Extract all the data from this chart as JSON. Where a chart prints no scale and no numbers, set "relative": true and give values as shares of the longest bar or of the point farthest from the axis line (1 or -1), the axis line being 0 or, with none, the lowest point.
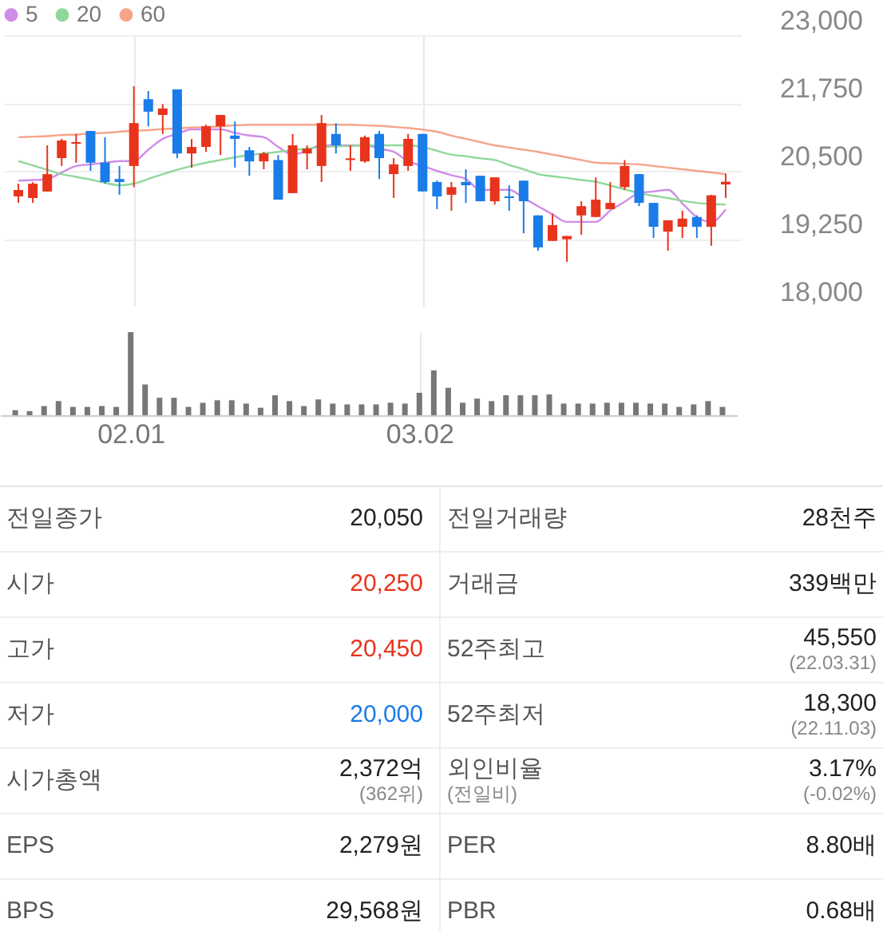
{
  "chart_data": [
    {
      "type": "candlestick",
      "categories": [
        null,
        null,
        null,
        null,
        null,
        null,
        null,
        null,
        "02.01",
        null,
        null,
        null,
        null,
        null,
        null,
        null,
        null,
        null,
        null,
        null,
        null,
        null,
        null,
        null,
        null,
        null,
        null,
        null,
        "03.02",
        null,
        null,
        null,
        null,
        null,
        null,
        null,
        null,
        null,
        null,
        null,
        null,
        null,
        null,
        null,
        null,
        null,
        null,
        null,
        null,
        null
      ],
      "ohlc": [
        [
          20030,
          20265,
          19912,
          20147
        ],
        [
          20000,
          20290,
          19910,
          20265
        ],
        [
          20120,
          20970,
          20120,
          20440
        ],
        [
          20735,
          21090,
          20590,
          21060
        ],
        [
          21000,
          21180,
          20650,
          21030
        ],
        [
          21235,
          21235,
          20500,
          20650
        ],
        [
          20650,
          21120,
          20265,
          20295
        ],
        [
          20350,
          20590,
          20060,
          20295
        ],
        [
          20590,
          22060,
          20200,
          21380
        ],
        [
          21820,
          21970,
          21320,
          21590
        ],
        [
          21530,
          21730,
          21180,
          21650
        ],
        [
          22000,
          22000,
          20735,
          20820
        ],
        [
          20820,
          21090,
          20560,
          20940
        ],
        [
          20940,
          21350,
          20850,
          21320
        ],
        [
          21320,
          21530,
          20790,
          21530
        ],
        [
          21150,
          21410,
          20560,
          21090
        ],
        [
          20880,
          20940,
          20410,
          20675
        ],
        [
          20675,
          20850,
          20530,
          20820
        ],
        [
          20700,
          20790,
          19970,
          19970
        ],
        [
          20090,
          21180,
          20090,
          20970
        ],
        [
          20820,
          20970,
          20530,
          20910
        ],
        [
          20590,
          21530,
          20295,
          21380
        ],
        [
          21180,
          21380,
          20820,
          20970
        ],
        [
          20700,
          20970,
          20500,
          20730
        ],
        [
          20675,
          21150,
          20650,
          21120
        ],
        [
          21180,
          21235,
          20350,
          20735
        ],
        [
          20440,
          20735,
          20000,
          20620
        ],
        [
          20590,
          21180,
          20500,
          21090
        ],
        [
          21180,
          21180,
          20120,
          20120
        ],
        [
          20295,
          20320,
          19795,
          20030
        ],
        [
          20060,
          20295,
          19765,
          20200
        ],
        [
          20295,
          20530,
          19910,
          20235
        ],
        [
          20410,
          20410,
          19940,
          19940
        ],
        [
          19940,
          20380,
          19880,
          20380
        ],
        [
          20030,
          20235,
          19765,
          20000
        ],
        [
          20320,
          20320,
          19350,
          19940
        ],
        [
          19680,
          19680,
          19030,
          19090
        ],
        [
          19210,
          19710,
          19210,
          19500
        ],
        [
          19240,
          19300,
          18825,
          19300
        ],
        [
          19680,
          19940,
          19325,
          19850
        ],
        [
          19650,
          20380,
          19650,
          19970
        ],
        [
          19795,
          20295,
          19795,
          19910
        ],
        [
          20200,
          20700,
          20150,
          20590
        ],
        [
          20440,
          20440,
          19850,
          19910
        ],
        [
          19910,
          19910,
          19265,
          19470
        ],
        [
          19380,
          19590,
          19030,
          19590
        ],
        [
          19470,
          19765,
          19265,
          19620
        ],
        [
          19650,
          19680,
          19265,
          19470
        ],
        [
          19470,
          20060,
          19120,
          20050
        ],
        [
          20250,
          20450,
          20000,
          20300
        ]
      ],
      "colors": [
        "#e8341c",
        "#e8341c",
        "#e8341c",
        "#e8341c",
        "#e8341c",
        "#1a7ce8",
        "#1a7ce8",
        "#1a7ce8",
        "#e8341c",
        "#1a7ce8",
        "#e8341c",
        "#1a7ce8",
        "#e8341c",
        "#e8341c",
        "#e8341c",
        "#1a7ce8",
        "#1a7ce8",
        "#e8341c",
        "#1a7ce8",
        "#e8341c",
        "#e8341c",
        "#e8341c",
        "#1a7ce8",
        "#e8341c",
        "#e8341c",
        "#1a7ce8",
        "#e8341c",
        "#e8341c",
        "#1a7ce8",
        "#1a7ce8",
        "#e8341c",
        "#1a7ce8",
        "#1a7ce8",
        "#e8341c",
        "#1a7ce8",
        "#1a7ce8",
        "#1a7ce8",
        "#e8341c",
        "#e8341c",
        "#e8341c",
        "#e8341c",
        "#e8341c",
        "#e8341c",
        "#1a7ce8",
        "#1a7ce8",
        "#e8341c",
        "#e8341c",
        "#1a7ce8",
        "#e8341c",
        "#e8341c"
      ],
      "series": [
        {
          "name": "5",
          "type": "line",
          "color": "#d08ce8",
          "values": [
            20320,
            20330,
            20350,
            20470,
            20590,
            20620,
            20650,
            20680,
            20680,
            20890,
            21090,
            21180,
            21265,
            21265,
            21265,
            21200,
            21150,
            21120,
            20940,
            20800,
            20880,
            20970,
            20970,
            20970,
            20970,
            20910,
            20850,
            20680,
            20590,
            20500,
            20420,
            20350,
            20150,
            20150,
            20150,
            20000,
            19850,
            19700,
            19560,
            19560,
            19560,
            19770,
            19930,
            20090,
            20120,
            20150,
            19900,
            19650,
            19560,
            19790
          ]
        },
        {
          "name": "20",
          "type": "line",
          "color": "#8fd89a",
          "values": [
            20680,
            20600,
            20520,
            20440,
            20390,
            20340,
            20280,
            20235,
            20265,
            20350,
            20440,
            20520,
            20590,
            20650,
            20700,
            20750,
            20790,
            20820,
            20850,
            20880,
            20910,
            20940,
            20950,
            20960,
            20970,
            20970,
            20970,
            20970,
            20940,
            20870,
            20800,
            20770,
            20730,
            20700,
            20610,
            20530,
            20440,
            20400,
            20370,
            20330,
            20300,
            20230,
            20160,
            20090,
            20040,
            20000,
            19950,
            19910,
            19890,
            19880
          ]
        },
        {
          "name": "60",
          "type": "line",
          "color": "#f5a488",
          "values": [
            21120,
            21130,
            21140,
            21160,
            21170,
            21190,
            21200,
            21220,
            21240,
            21250,
            21270,
            21280,
            21300,
            21310,
            21320,
            21340,
            21350,
            21350,
            21350,
            21350,
            21350,
            21350,
            21350,
            21350,
            21340,
            21330,
            21310,
            21290,
            21260,
            21220,
            21150,
            21090,
            21030,
            20970,
            20930,
            20890,
            20850,
            20800,
            20750,
            20700,
            20650,
            20640,
            20630,
            20620,
            20590,
            20560,
            20530,
            20500,
            20470,
            20440
          ]
        }
      ],
      "ylim": [
        18000,
        23000
      ],
      "yticks": [
        {
          "value": 18000,
          "label": "18,000"
        },
        {
          "value": 19250,
          "label": "19,250"
        },
        {
          "value": 20500,
          "label": "20,500"
        },
        {
          "value": 21750,
          "label": "21,750"
        },
        {
          "value": 23000,
          "label": "23,000"
        }
      ],
      "grid": true,
      "legend": "top left",
      "tick_labels": "y"
    },
    {
      "type": "bar",
      "relative": true,
      "color": "#777777",
      "categories": [
        null,
        null,
        null,
        null,
        null,
        null,
        null,
        null,
        "02.01",
        null,
        null,
        null,
        null,
        null,
        null,
        null,
        null,
        null,
        null,
        null,
        null,
        null,
        null,
        null,
        null,
        null,
        null,
        null,
        "03.02",
        null,
        null,
        null,
        null,
        null,
        null,
        null,
        null,
        null,
        null,
        null,
        null,
        null,
        null,
        null,
        null,
        null,
        null,
        null,
        null,
        null
      ],
      "values": [
        0.06,
        0.05,
        0.11,
        0.17,
        0.1,
        0.1,
        0.11,
        0.1,
        1,
        0.37,
        0.21,
        0.21,
        0.1,
        0.15,
        0.18,
        0.18,
        0.14,
        0.09,
        0.24,
        0.17,
        0.11,
        0.19,
        0.14,
        0.13,
        0.13,
        0.13,
        0.15,
        0.14,
        0.27,
        0.54,
        0.33,
        0.15,
        0.2,
        0.17,
        0.24,
        0.24,
        0.24,
        0.25,
        0.14,
        0.14,
        0.14,
        0.15,
        0.15,
        0.15,
        0.14,
        0.14,
        0.1,
        0.13,
        0.17,
        0.1
      ],
      "grid": "x",
      "tick_labels": "x"
    },
    {
      "type": "other",
      "categories": [
        "전일종가",
        "전일거래량",
        "시가",
        "거래금",
        "고가",
        "52주최고",
        "저가",
        "52주최저",
        "시가총액",
        "외인비율\n(전일비)",
        "EPS",
        "PER",
        "BPS",
        "PBR"
      ],
      "value_labels": [
        "20,050",
        "28천주",
        "20,250",
        "339백만",
        "20,450",
        "45,550\n(22.03.31)",
        "20,000",
        "18,300\n(22.11.03)",
        "2,372억\n(362위)",
        "3.17%\n(-0.02%)",
        "2,279원",
        "8.80배",
        "29,568원",
        "0.68배"
      ],
      "colors": [
        "#222222",
        "#222222",
        "#e8341c",
        "#222222",
        "#e8341c",
        "#222222",
        "#1a7ce8",
        "#222222",
        "#222222",
        "#222222",
        "#222222",
        "#222222",
        "#222222",
        "#222222"
      ]
    }
  ]
}
